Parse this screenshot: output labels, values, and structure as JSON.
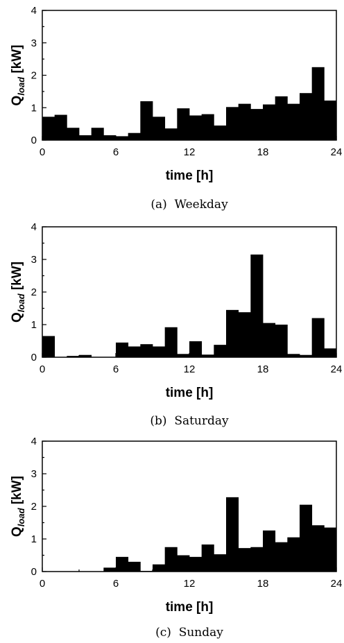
{
  "chart_data": [
    {
      "type": "bar",
      "caption": "(a)  Weekday",
      "xlabel": "time [h]",
      "ylabel": "Q",
      "ylabel_sub": "load",
      "ylabel_unit": " [kW]",
      "xlim": [
        0,
        24
      ],
      "ylim": [
        0,
        4
      ],
      "xticks": [
        "0",
        "6",
        "12",
        "18",
        "24"
      ],
      "yticks": [
        "0",
        "1",
        "2",
        "3",
        "4"
      ],
      "bin_width_h": 1,
      "values": [
        0.72,
        0.78,
        0.38,
        0.15,
        0.38,
        0.15,
        0.12,
        0.22,
        1.2,
        0.72,
        0.36,
        0.98,
        0.76,
        0.8,
        0.45,
        1.02,
        1.12,
        0.96,
        1.1,
        1.35,
        1.12,
        1.45,
        2.25,
        1.22
      ]
    },
    {
      "type": "bar",
      "caption": "(b)  Saturday",
      "xlabel": "time [h]",
      "ylabel": "Q",
      "ylabel_sub": "load",
      "ylabel_unit": " [kW]",
      "xlim": [
        0,
        24
      ],
      "ylim": [
        0,
        4
      ],
      "xticks": [
        "0",
        "6",
        "12",
        "18",
        "24"
      ],
      "yticks": [
        "0",
        "1",
        "2",
        "3",
        "4"
      ],
      "bin_width_h": 1,
      "values": [
        0.65,
        0.0,
        0.04,
        0.07,
        0.0,
        0.0,
        0.45,
        0.33,
        0.4,
        0.33,
        0.92,
        0.1,
        0.49,
        0.08,
        0.38,
        1.45,
        1.38,
        3.15,
        1.05,
        1.0,
        0.1,
        0.07,
        1.2,
        0.27
      ]
    },
    {
      "type": "bar",
      "caption": "(c)  Sunday",
      "xlabel": "time [h]",
      "ylabel": "Q",
      "ylabel_sub": "load",
      "ylabel_unit": " [kW]",
      "xlim": [
        0,
        24
      ],
      "ylim": [
        0,
        4
      ],
      "xticks": [
        "0",
        "6",
        "12",
        "18",
        "24"
      ],
      "yticks": [
        "0",
        "1",
        "2",
        "3",
        "4"
      ],
      "bin_width_h": 1,
      "values": [
        0.0,
        0.0,
        0.0,
        0.0,
        0.0,
        0.12,
        0.45,
        0.3,
        0.02,
        0.22,
        0.75,
        0.5,
        0.45,
        0.83,
        0.53,
        2.28,
        0.72,
        0.75,
        1.26,
        0.9,
        1.05,
        2.05,
        1.42,
        1.35
      ]
    }
  ]
}
